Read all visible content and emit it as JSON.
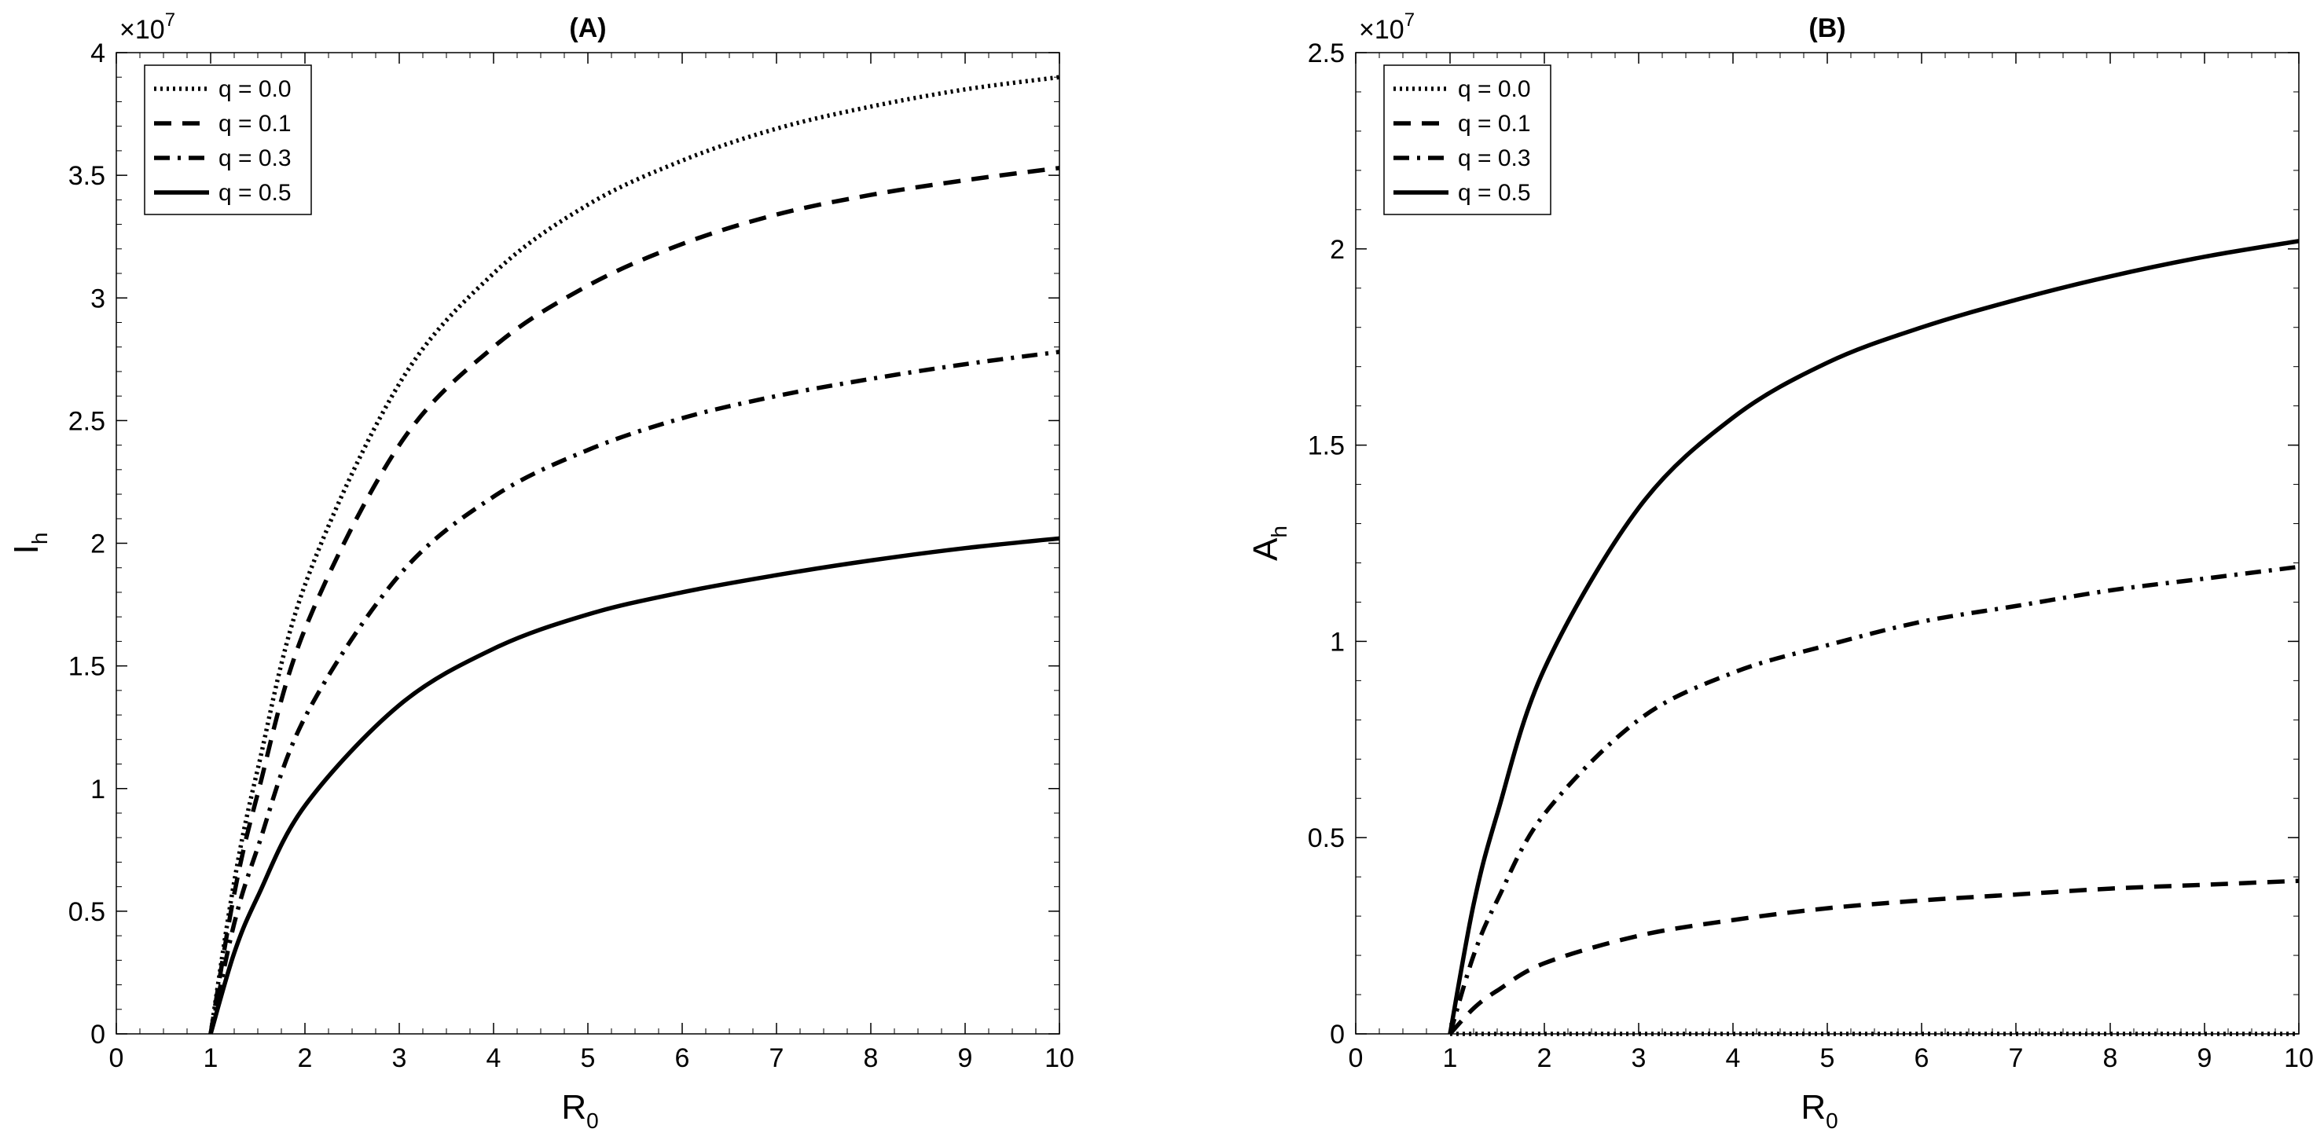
{
  "chart_data": [
    {
      "panel": "A",
      "type": "line",
      "title": "(A)",
      "xlabel": "R",
      "xlabel_sub": "0",
      "ylabel": "I",
      "ylabel_sub": "h",
      "xlim": [
        0,
        10
      ],
      "ylim": [
        0,
        4
      ],
      "xticks": [
        "0",
        "1",
        "2",
        "3",
        "4",
        "5",
        "6",
        "7",
        "8",
        "9",
        "10"
      ],
      "yticks": [
        "0",
        "0.5",
        "1",
        "1.5",
        "2",
        "2.5",
        "3",
        "3.5",
        "4"
      ],
      "y_multiplier": "×10",
      "y_multiplier_exp": "7",
      "grid": false,
      "legend_position": "top-left",
      "series": [
        {
          "name": "q = 0.0",
          "style": "dotted",
          "x": [
            1,
            1.25,
            1.5,
            2,
            3,
            4,
            5,
            6,
            7,
            8,
            9,
            10
          ],
          "values": [
            0,
            0.62,
            1.08,
            1.83,
            2.65,
            3.1,
            3.38,
            3.56,
            3.69,
            3.78,
            3.85,
            3.9
          ]
        },
        {
          "name": "q = 0.1",
          "style": "dashed",
          "x": [
            1,
            1.25,
            1.5,
            2,
            3,
            4,
            5,
            6,
            7,
            8,
            9,
            10
          ],
          "values": [
            0,
            0.57,
            0.98,
            1.65,
            2.4,
            2.8,
            3.05,
            3.22,
            3.34,
            3.42,
            3.48,
            3.53
          ]
        },
        {
          "name": "q = 0.3",
          "style": "dashdot",
          "x": [
            1,
            1.25,
            1.5,
            2,
            3,
            4,
            5,
            6,
            7,
            8,
            9,
            10
          ],
          "values": [
            0,
            0.45,
            0.76,
            1.29,
            1.87,
            2.19,
            2.38,
            2.51,
            2.6,
            2.67,
            2.73,
            2.78
          ]
        },
        {
          "name": "q = 0.5",
          "style": "solid",
          "x": [
            1,
            1.25,
            1.5,
            2,
            3,
            4,
            5,
            6,
            7,
            8,
            9,
            10
          ],
          "values": [
            0,
            0.33,
            0.56,
            0.93,
            1.34,
            1.57,
            1.71,
            1.8,
            1.87,
            1.93,
            1.98,
            2.02
          ]
        }
      ]
    },
    {
      "panel": "B",
      "type": "line",
      "title": "(B)",
      "xlabel": "R",
      "xlabel_sub": "0",
      "ylabel": "A",
      "ylabel_sub": "h",
      "xlim": [
        0,
        10
      ],
      "ylim": [
        0,
        2.5
      ],
      "xticks": [
        "0",
        "1",
        "2",
        "3",
        "4",
        "5",
        "6",
        "7",
        "8",
        "9",
        "10"
      ],
      "yticks": [
        "0",
        "0.5",
        "1",
        "1.5",
        "2",
        "2.5"
      ],
      "y_multiplier": "×10",
      "y_multiplier_exp": "7",
      "grid": false,
      "legend_position": "top-left",
      "series": [
        {
          "name": "q = 0.0",
          "style": "dotted",
          "x": [
            1,
            1.25,
            1.5,
            2,
            3,
            4,
            5,
            6,
            7,
            8,
            9,
            10
          ],
          "values": [
            0,
            0,
            0,
            0,
            0,
            0,
            0,
            0,
            0,
            0,
            0,
            0
          ]
        },
        {
          "name": "q = 0.1",
          "style": "dashed",
          "x": [
            1,
            1.25,
            1.5,
            2,
            3,
            4,
            5,
            6,
            7,
            8,
            9,
            10
          ],
          "values": [
            0,
            0.065,
            0.11,
            0.18,
            0.25,
            0.29,
            0.32,
            0.34,
            0.355,
            0.37,
            0.38,
            0.39
          ]
        },
        {
          "name": "q = 0.3",
          "style": "dashdot",
          "x": [
            1,
            1.25,
            1.5,
            2,
            3,
            4,
            5,
            6,
            7,
            8,
            9,
            10
          ],
          "values": [
            0,
            0.2,
            0.34,
            0.56,
            0.8,
            0.92,
            0.99,
            1.05,
            1.09,
            1.13,
            1.16,
            1.19
          ]
        },
        {
          "name": "q = 0.5",
          "style": "solid",
          "x": [
            1,
            1.25,
            1.5,
            2,
            3,
            4,
            5,
            6,
            7,
            8,
            9,
            10
          ],
          "values": [
            0,
            0.33,
            0.56,
            0.93,
            1.34,
            1.57,
            1.71,
            1.8,
            1.87,
            1.93,
            1.98,
            2.02
          ]
        }
      ]
    }
  ]
}
